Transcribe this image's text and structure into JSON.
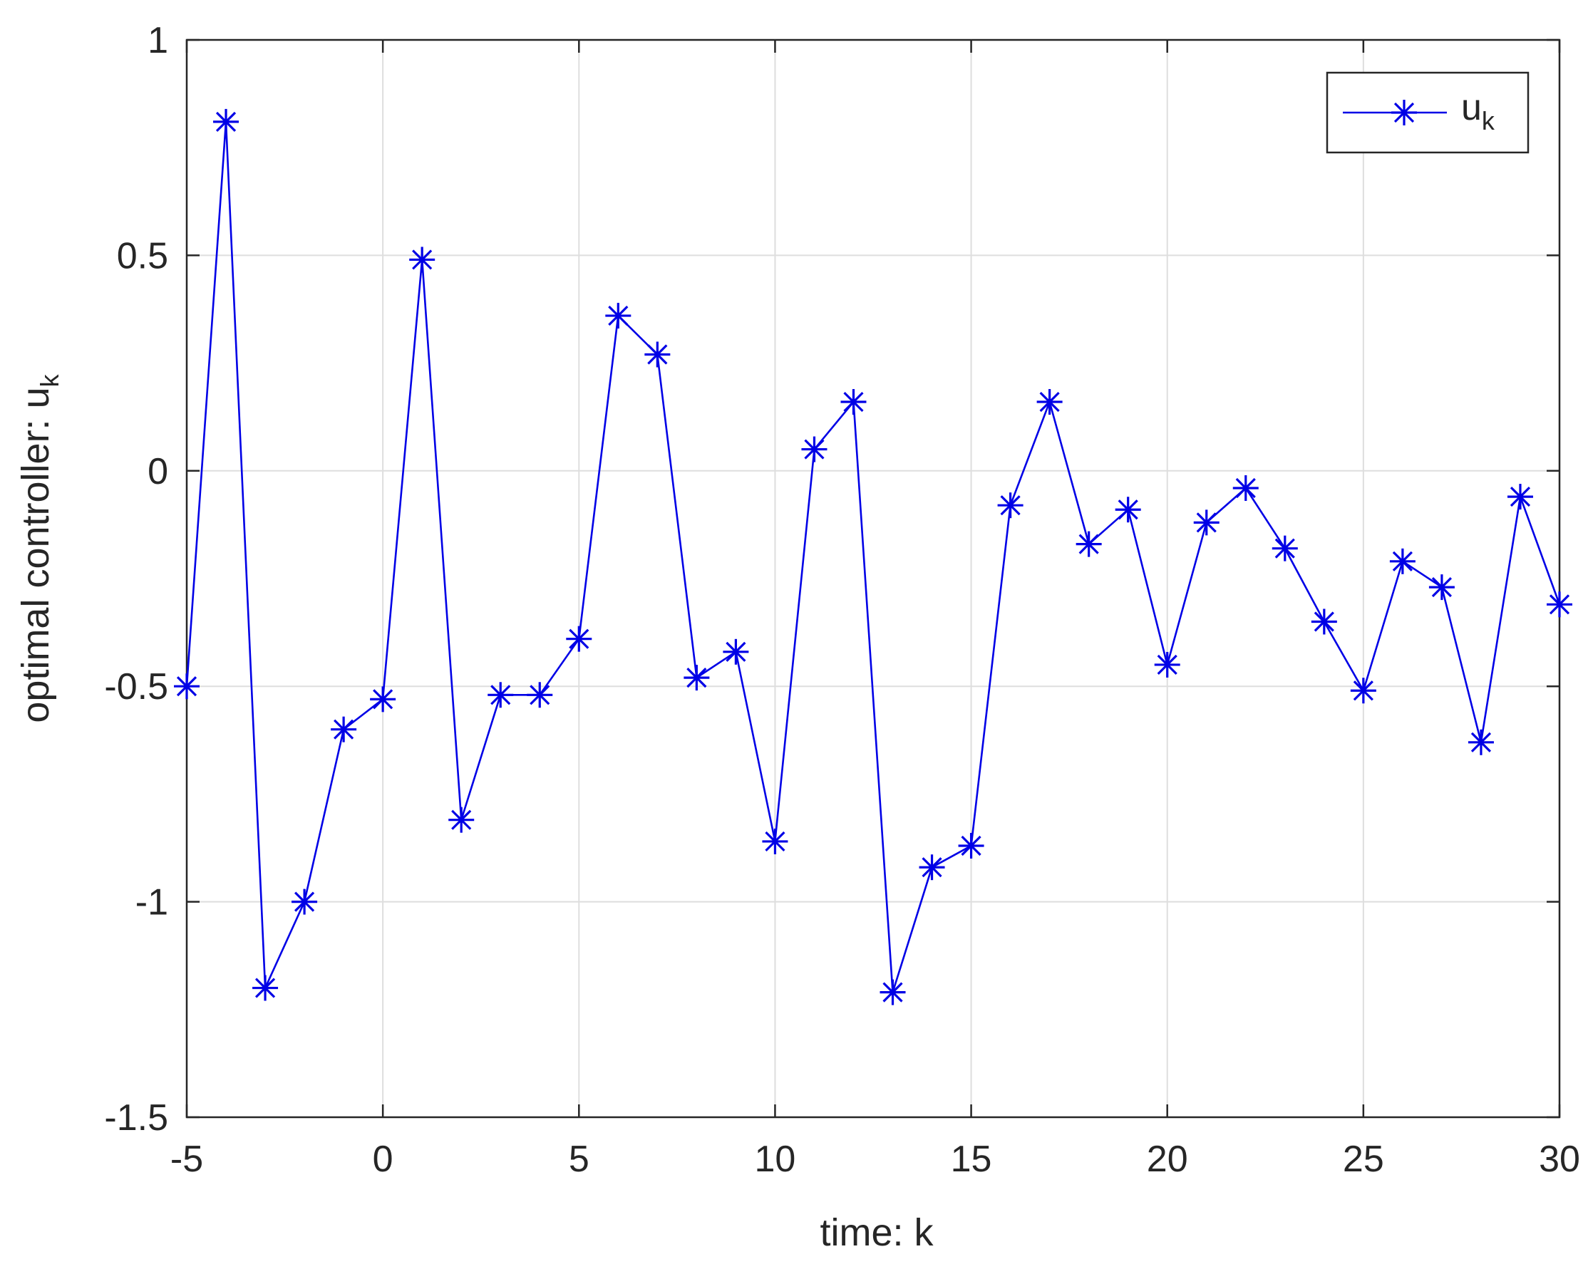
{
  "chart_data": {
    "type": "line",
    "title": "",
    "xlabel": "time: k",
    "ylabel_main": "optimal controller: u",
    "ylabel_sub": "k",
    "xlim": [
      -5,
      30
    ],
    "ylim": [
      -1.5,
      1
    ],
    "xticks": [
      -5,
      0,
      5,
      10,
      15,
      20,
      25,
      30
    ],
    "yticks": [
      -1.5,
      -1,
      -0.5,
      0,
      0.5,
      1
    ],
    "xtick_labels": [
      "-5",
      "0",
      "5",
      "10",
      "15",
      "20",
      "25",
      "30"
    ],
    "ytick_labels": [
      "-1.5",
      "-1",
      "-0.5",
      "0",
      "0.5",
      "1"
    ],
    "grid": true,
    "legend_position": "top-right",
    "series": [
      {
        "name_main": "u",
        "name_sub": "k",
        "color": "#0000e6",
        "marker": "asterisk",
        "x": [
          -5,
          -4,
          -3,
          -2,
          -1,
          0,
          1,
          2,
          3,
          4,
          5,
          6,
          7,
          8,
          9,
          10,
          11,
          12,
          13,
          14,
          15,
          16,
          17,
          18,
          19,
          20,
          21,
          22,
          23,
          24,
          25,
          26,
          27,
          28,
          29,
          30
        ],
        "y": [
          -0.5,
          0.81,
          -1.2,
          -1.0,
          -0.6,
          -0.53,
          0.49,
          -0.81,
          -0.52,
          -0.52,
          -0.39,
          0.36,
          0.27,
          -0.48,
          -0.42,
          -0.86,
          0.05,
          0.16,
          -1.21,
          -0.92,
          -0.87,
          -0.08,
          0.16,
          -0.17,
          -0.09,
          -0.45,
          -0.12,
          -0.04,
          -0.18,
          -0.35,
          -0.51,
          -0.21,
          -0.27,
          -0.63,
          -0.06,
          -0.31
        ]
      }
    ]
  }
}
